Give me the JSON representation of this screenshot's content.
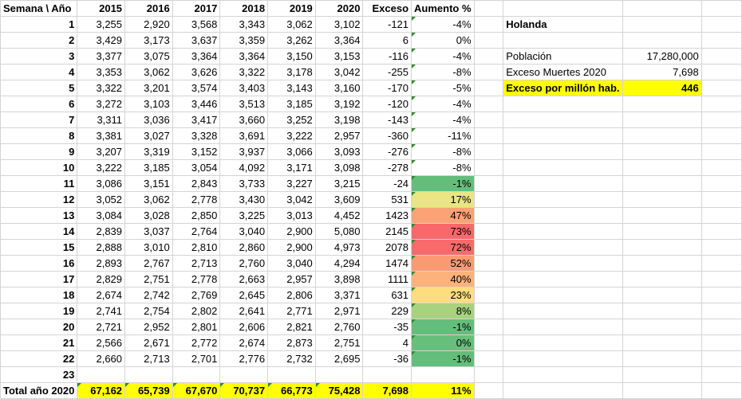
{
  "header": [
    "Semana \\ Año",
    "2015",
    "2016",
    "2017",
    "2018",
    "2019",
    "2020",
    "Exceso",
    "Aumento %"
  ],
  "rows": [
    {
      "w": "1",
      "v": [
        "3,255",
        "2,920",
        "3,568",
        "3,343",
        "3,062",
        "3,102"
      ],
      "exc": "-121",
      "pct": "-4%",
      "color": ""
    },
    {
      "w": "2",
      "v": [
        "3,429",
        "3,173",
        "3,637",
        "3,359",
        "3,262",
        "3,364"
      ],
      "exc": "6",
      "pct": "0%",
      "color": ""
    },
    {
      "w": "3",
      "v": [
        "3,377",
        "3,075",
        "3,364",
        "3,364",
        "3,150",
        "3,153"
      ],
      "exc": "-116",
      "pct": "-4%",
      "color": ""
    },
    {
      "w": "4",
      "v": [
        "3,353",
        "3,062",
        "3,626",
        "3,322",
        "3,178",
        "3,042"
      ],
      "exc": "-255",
      "pct": "-8%",
      "color": ""
    },
    {
      "w": "5",
      "v": [
        "3,322",
        "3,201",
        "3,574",
        "3,403",
        "3,143",
        "3,160"
      ],
      "exc": "-170",
      "pct": "-5%",
      "color": ""
    },
    {
      "w": "6",
      "v": [
        "3,272",
        "3,103",
        "3,446",
        "3,513",
        "3,185",
        "3,192"
      ],
      "exc": "-120",
      "pct": "-4%",
      "color": ""
    },
    {
      "w": "7",
      "v": [
        "3,311",
        "3,036",
        "3,417",
        "3,660",
        "3,252",
        "3,198"
      ],
      "exc": "-143",
      "pct": "-4%",
      "color": ""
    },
    {
      "w": "8",
      "v": [
        "3,381",
        "3,027",
        "3,328",
        "3,691",
        "3,222",
        "2,957"
      ],
      "exc": "-360",
      "pct": "-11%",
      "color": ""
    },
    {
      "w": "9",
      "v": [
        "3,207",
        "3,319",
        "3,152",
        "3,937",
        "3,066",
        "3,093"
      ],
      "exc": "-276",
      "pct": "-8%",
      "color": ""
    },
    {
      "w": "10",
      "v": [
        "3,222",
        "3,185",
        "3,054",
        "4,092",
        "3,171",
        "3,098"
      ],
      "exc": "-278",
      "pct": "-8%",
      "color": ""
    },
    {
      "w": "11",
      "v": [
        "3,086",
        "3,151",
        "2,843",
        "3,733",
        "3,227",
        "3,215"
      ],
      "exc": "-24",
      "pct": "-1%",
      "color": "#63be7b"
    },
    {
      "w": "12",
      "v": [
        "3,052",
        "3,062",
        "2,778",
        "3,430",
        "3,042",
        "3,609"
      ],
      "exc": "531",
      "pct": "17%",
      "color": "#e9e583"
    },
    {
      "w": "13",
      "v": [
        "3,084",
        "3,028",
        "2,850",
        "3,225",
        "3,013",
        "4,452"
      ],
      "exc": "1423",
      "pct": "47%",
      "color": "#fba276"
    },
    {
      "w": "14",
      "v": [
        "2,839",
        "3,037",
        "2,764",
        "3,040",
        "2,900",
        "5,080"
      ],
      "exc": "2145",
      "pct": "73%",
      "color": "#f8696b"
    },
    {
      "w": "15",
      "v": [
        "2,888",
        "3,010",
        "2,810",
        "2,860",
        "2,900",
        "4,973"
      ],
      "exc": "2078",
      "pct": "72%",
      "color": "#f86b6c"
    },
    {
      "w": "16",
      "v": [
        "2,893",
        "2,767",
        "2,713",
        "2,760",
        "3,040",
        "4,294"
      ],
      "exc": "1474",
      "pct": "52%",
      "color": "#fa9a73"
    },
    {
      "w": "17",
      "v": [
        "2,829",
        "2,751",
        "2,778",
        "2,663",
        "2,957",
        "3,898"
      ],
      "exc": "1111",
      "pct": "40%",
      "color": "#fcb27a"
    },
    {
      "w": "18",
      "v": [
        "2,674",
        "2,742",
        "2,769",
        "2,645",
        "2,806",
        "3,371"
      ],
      "exc": "631",
      "pct": "23%",
      "color": "#fedd81"
    },
    {
      "w": "19",
      "v": [
        "2,741",
        "2,754",
        "2,802",
        "2,641",
        "2,771",
        "2,971"
      ],
      "exc": "229",
      "pct": "8%",
      "color": "#a9d27f"
    },
    {
      "w": "20",
      "v": [
        "2,721",
        "2,952",
        "2,801",
        "2,606",
        "2,821",
        "2,760"
      ],
      "exc": "-35",
      "pct": "-1%",
      "color": "#63be7b"
    },
    {
      "w": "21",
      "v": [
        "2,566",
        "2,671",
        "2,772",
        "2,674",
        "2,873",
        "2,751"
      ],
      "exc": "4",
      "pct": "0%",
      "color": "#66c07b"
    },
    {
      "w": "22",
      "v": [
        "2,660",
        "2,713",
        "2,701",
        "2,776",
        "2,732",
        "2,695"
      ],
      "exc": "-36",
      "pct": "-1%",
      "color": "#63be7b"
    }
  ],
  "row23": "23",
  "total": {
    "label": "Total año 2020",
    "v": [
      "67,162",
      "65,739",
      "67,670",
      "70,737",
      "66,773",
      "75,428"
    ],
    "exc": "7,698",
    "pct": "11%"
  },
  "side": {
    "title": "Holanda",
    "poblacion_label": "Población",
    "poblacion_value": "17,280,000",
    "exceso_label": "Exceso Muertes 2020",
    "exceso_value": "7,698",
    "pm_label": "Exceso por millón hab.",
    "pm_value": "446"
  },
  "colors": {
    "highlight": "#ffff00",
    "grid": "#d4d4d4",
    "triangle": "#2e8b2e"
  }
}
